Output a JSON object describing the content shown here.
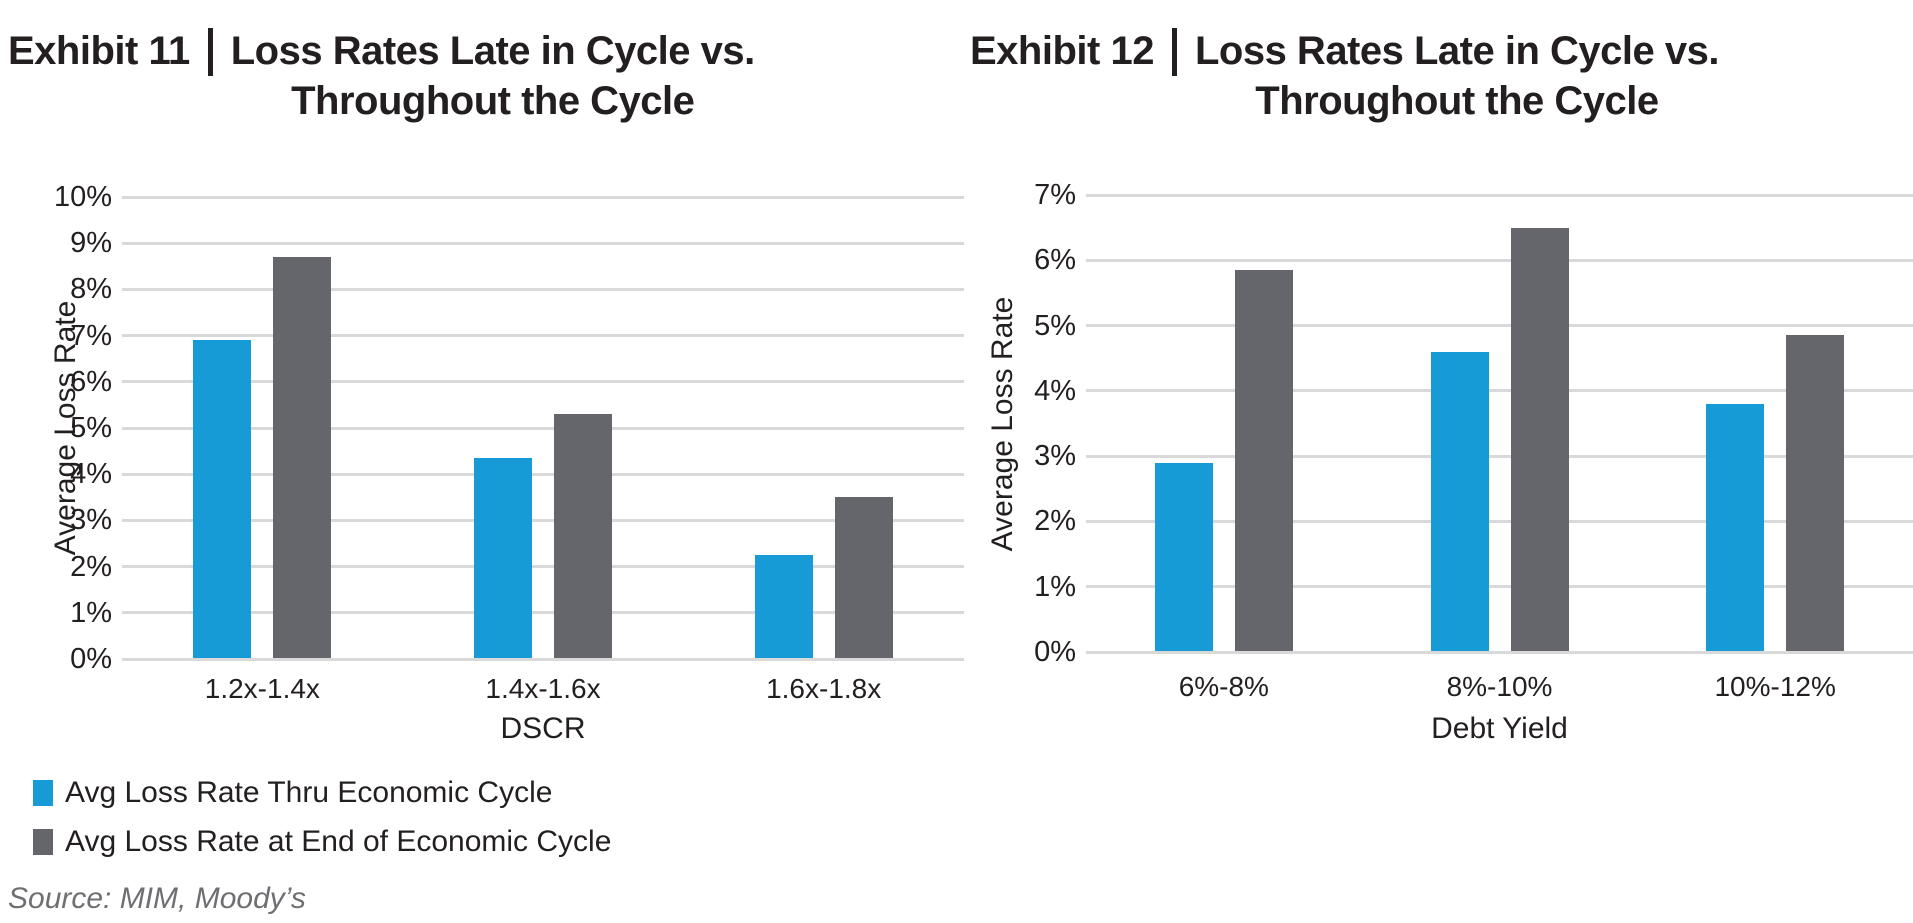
{
  "chart_data": [
    {
      "type": "bar",
      "exhibit_label": "Exhibit 11",
      "title_line1": "Loss Rates Late in Cycle vs.",
      "title_line2": "Throughout the Cycle",
      "ylabel": "Average Loss Rate",
      "xlabel": "DSCR",
      "categories": [
        "1.2x-1.4x",
        "1.4x-1.6x",
        "1.6x-1.8x"
      ],
      "series": [
        {
          "name": "Avg Loss Rate Thru Economic Cycle",
          "color": "#169BD7",
          "values": [
            6.9,
            4.35,
            2.25
          ]
        },
        {
          "name": "Avg Loss Rate at End of Economic Cycle",
          "color": "#64666B",
          "values": [
            8.7,
            5.3,
            3.5
          ]
        }
      ],
      "ylim": [
        0,
        10
      ],
      "yticks": [
        "0%",
        "1%",
        "2%",
        "3%",
        "4%",
        "5%",
        "6%",
        "7%",
        "8%",
        "9%",
        "10%"
      ],
      "grid": true,
      "legend_position": "below-left"
    },
    {
      "type": "bar",
      "exhibit_label": "Exhibit 12",
      "title_line1": "Loss Rates Late in Cycle vs.",
      "title_line2": "Throughout the Cycle",
      "ylabel": "Average Loss Rate",
      "xlabel": "Debt Yield",
      "categories": [
        "6%-8%",
        "8%-10%",
        "10%-12%"
      ],
      "series": [
        {
          "name": "Avg Loss Rate Thru Economic Cycle",
          "color": "#169BD7",
          "values": [
            2.9,
            4.6,
            3.8
          ]
        },
        {
          "name": "Avg Loss Rate at End of Economic Cycle",
          "color": "#64666B",
          "values": [
            5.85,
            6.5,
            4.85
          ]
        }
      ],
      "ylim": [
        0,
        7
      ],
      "yticks": [
        "0%",
        "1%",
        "2%",
        "3%",
        "4%",
        "5%",
        "6%",
        "7%"
      ],
      "grid": true,
      "legend_position": "none"
    }
  ],
  "legend": {
    "items": [
      {
        "label": "Avg Loss Rate Thru Economic Cycle",
        "color": "#169BD7"
      },
      {
        "label": "Avg Loss Rate at End of Economic Cycle",
        "color": "#64666B"
      }
    ]
  },
  "source": "Source: MIM, Moody’s",
  "colors": {
    "accent_blue": "#169BD7",
    "bar_gray": "#64666B",
    "gridline": "#D9D9D9",
    "text": "#231F20",
    "source_text": "#6E6F72"
  }
}
